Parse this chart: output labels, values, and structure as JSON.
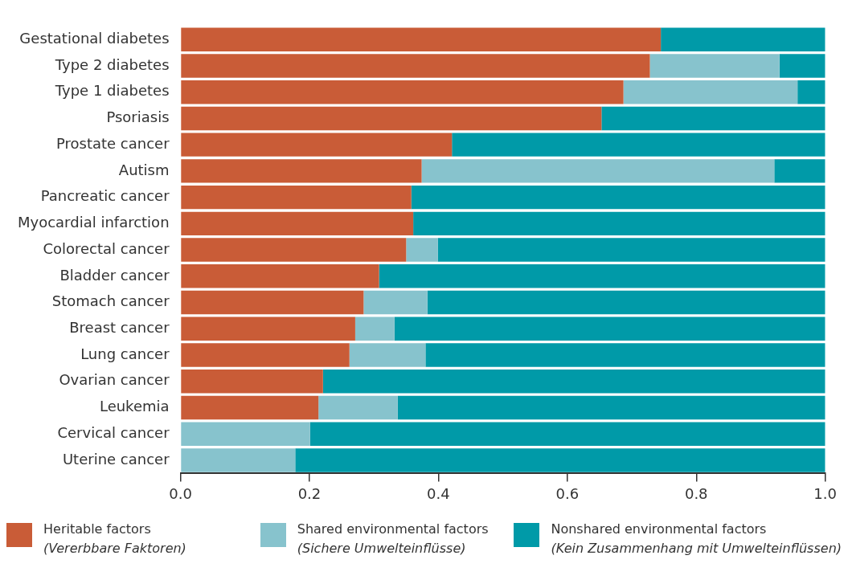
{
  "chart_data": {
    "type": "bar",
    "orientation": "horizontal",
    "stacked": true,
    "categories": [
      "Gestational diabetes",
      "Type 2 diabetes",
      "Type 1 diabetes",
      "Psoriasis",
      "Prostate cancer",
      "Autism",
      "Pancreatic cancer",
      "Myocardial infarction",
      "Colorectal cancer",
      "Bladder cancer",
      "Stomach cancer",
      "Breast cancer",
      "Lung cancer",
      "Ovarian cancer",
      "Leukemia",
      "Cervical cancer",
      "Uterine cancer"
    ],
    "series": [
      {
        "name": "Heritable factors\n(Vererbbare Faktoren)",
        "color": "#c95c37",
        "values": [
          0.745,
          0.728,
          0.687,
          0.653,
          0.421,
          0.374,
          0.358,
          0.361,
          0.35,
          0.308,
          0.284,
          0.271,
          0.262,
          0.221,
          0.214,
          0,
          0
        ]
      },
      {
        "name": "Shared environmental factors\n(Sichere Umwelteinflüsse)",
        "color": "#87c3cd",
        "values": [
          0,
          0.201,
          0.27,
          0,
          0,
          0.547,
          0,
          0,
          0.049,
          0,
          0.099,
          0.061,
          0.118,
          0,
          0.123,
          0.201,
          0.178
        ]
      },
      {
        "name": "Nonshared environmental factors\n(Kein Zusammenhang mit Umwelteinflüssen)",
        "color": "#009aa8",
        "values": [
          0.255,
          0.071,
          0.043,
          0.347,
          0.579,
          0.079,
          0.642,
          0.639,
          0.601,
          0.692,
          0.617,
          0.668,
          0.62,
          0.779,
          0.663,
          0.799,
          0.822
        ]
      }
    ],
    "xlim": [
      0,
      1
    ],
    "xticks": [
      {
        "value": 0,
        "label": "0.0"
      },
      {
        "value": 0.2,
        "label": "0.2"
      },
      {
        "value": 0.4,
        "label": "0.4"
      },
      {
        "value": 0.6,
        "label": "0.6"
      },
      {
        "value": 0.8,
        "label": "0.8"
      },
      {
        "value": 1,
        "label": "1.0"
      }
    ],
    "grid": false,
    "legend": "bottom"
  }
}
